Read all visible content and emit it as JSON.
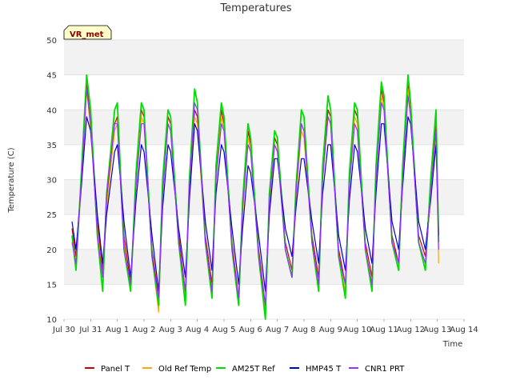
{
  "chart_data": {
    "type": "line",
    "title": "Temperatures",
    "xlabel": "Time",
    "ylabel": "Temperature (C)",
    "ylim": [
      10,
      50
    ],
    "xlim": [
      0,
      15
    ],
    "y_ticks": [
      10,
      15,
      20,
      25,
      30,
      35,
      40,
      45,
      50
    ],
    "x_ticks": [
      0,
      1,
      2,
      3,
      4,
      5,
      6,
      7,
      8,
      9,
      10,
      11,
      12,
      13,
      14,
      15
    ],
    "x_tick_labels": [
      "Jul 30",
      "Jul 31",
      "Aug 1",
      "Aug 2",
      "Aug 3",
      "Aug 4",
      "Aug 5",
      "Aug 6",
      "Aug 7",
      "Aug 8",
      "Aug 9",
      "Aug 10",
      "Aug 11",
      "Aug 12",
      "Aug 13",
      "Aug 14"
    ],
    "grid": true,
    "background_bands": true,
    "legend_position": "bottom",
    "site_badge": "VR_met",
    "series": [
      {
        "name": "Panel T",
        "color": "#cc0000",
        "width": 1.2,
        "x": [
          0.3,
          0.45,
          0.65,
          0.85,
          1.0,
          1.25,
          1.45,
          1.6,
          1.9,
          2.0,
          2.25,
          2.5,
          2.7,
          2.9,
          3.0,
          3.3,
          3.55,
          3.7,
          3.9,
          4.0,
          4.3,
          4.55,
          4.7,
          4.9,
          5.0,
          5.3,
          5.55,
          5.7,
          5.9,
          6.0,
          6.3,
          6.55,
          6.7,
          6.9,
          7.0,
          7.3,
          7.55,
          7.7,
          7.9,
          8.0,
          8.3,
          8.55,
          8.7,
          8.9,
          9.0,
          9.3,
          9.55,
          9.7,
          9.9,
          10.0,
          10.3,
          10.55,
          10.7,
          10.9,
          11.0,
          11.3,
          11.55,
          11.7,
          11.9,
          12.0,
          12.3,
          12.55,
          12.7,
          12.9,
          13.0,
          13.3,
          13.55,
          13.75,
          13.95,
          14.05
        ],
        "y": [
          23,
          19,
          30,
          44,
          38,
          24,
          17,
          27,
          38,
          39,
          22,
          15,
          30,
          40,
          39,
          20,
          13,
          29,
          39,
          38,
          22,
          14,
          29,
          40,
          39,
          22,
          15,
          31,
          40,
          38,
          21,
          13,
          26,
          37,
          35,
          20,
          12,
          27,
          36,
          35,
          21,
          17,
          28,
          38,
          37,
          22,
          16,
          31,
          40,
          39,
          20,
          15,
          30,
          40,
          39,
          21,
          16,
          31,
          43,
          41,
          22,
          18,
          31,
          44,
          40,
          22,
          19,
          29,
          38,
          21
        ]
      },
      {
        "name": "Old Ref Temp",
        "color": "#ffa500",
        "width": 1.2,
        "x": [
          0.3,
          0.45,
          0.65,
          0.85,
          1.0,
          1.25,
          1.45,
          1.6,
          1.9,
          2.0,
          2.25,
          2.5,
          2.7,
          2.9,
          3.0,
          3.3,
          3.55,
          3.7,
          3.9,
          4.0,
          4.3,
          4.55,
          4.7,
          4.9,
          5.0,
          5.3,
          5.55,
          5.7,
          5.9,
          6.0,
          6.3,
          6.55,
          6.7,
          6.9,
          7.0,
          7.3,
          7.55,
          7.7,
          7.9,
          8.0,
          8.3,
          8.55,
          8.7,
          8.9,
          9.0,
          9.3,
          9.55,
          9.7,
          9.9,
          10.0,
          10.3,
          10.55,
          10.7,
          10.9,
          11.0,
          11.3,
          11.55,
          11.7,
          11.9,
          12.0,
          12.3,
          12.55,
          12.7,
          12.9,
          13.0,
          13.3,
          13.55,
          13.75,
          13.95,
          14.05
        ],
        "y": [
          22,
          18,
          29,
          43,
          37,
          23,
          16,
          26,
          37,
          38,
          21,
          14,
          29,
          39,
          38,
          19,
          11,
          28,
          38,
          37,
          21,
          13,
          28,
          39,
          38,
          21,
          14,
          30,
          39,
          37,
          20,
          12,
          25,
          36,
          34,
          19,
          11,
          26,
          35,
          34,
          20,
          16,
          27,
          37,
          36,
          21,
          15,
          30,
          39,
          38,
          19,
          14,
          29,
          39,
          38,
          20,
          15,
          30,
          42,
          40,
          21,
          17,
          30,
          43,
          39,
          21,
          18,
          28,
          37,
          18
        ]
      },
      {
        "name": "AM25T Ref",
        "color": "#00dd00",
        "width": 1.8,
        "x": [
          0.3,
          0.45,
          0.65,
          0.85,
          1.0,
          1.25,
          1.45,
          1.6,
          1.9,
          2.0,
          2.25,
          2.5,
          2.7,
          2.9,
          3.0,
          3.3,
          3.55,
          3.7,
          3.9,
          4.0,
          4.3,
          4.55,
          4.7,
          4.9,
          5.0,
          5.3,
          5.55,
          5.7,
          5.9,
          6.0,
          6.3,
          6.55,
          6.7,
          6.9,
          7.0,
          7.3,
          7.55,
          7.7,
          7.9,
          8.0,
          8.3,
          8.55,
          8.7,
          8.9,
          9.0,
          9.3,
          9.55,
          9.7,
          9.9,
          10.0,
          10.3,
          10.55,
          10.7,
          10.9,
          11.0,
          11.3,
          11.55,
          11.7,
          11.9,
          12.0,
          12.3,
          12.55,
          12.7,
          12.9,
          13.0,
          13.3,
          13.55,
          13.75,
          13.95,
          14.05
        ],
        "y": [
          22,
          17,
          31,
          45,
          40,
          22,
          14,
          28,
          40,
          41,
          20,
          14,
          31,
          41,
          40,
          19,
          12,
          30,
          40,
          39,
          21,
          12,
          30,
          43,
          41,
          21,
          13,
          32,
          41,
          39,
          20,
          12,
          27,
          38,
          36,
          19,
          10,
          28,
          37,
          36,
          20,
          16,
          29,
          40,
          39,
          21,
          14,
          32,
          42,
          40,
          19,
          13,
          31,
          41,
          40,
          20,
          14,
          32,
          44,
          42,
          21,
          17,
          32,
          45,
          41,
          21,
          17,
          30,
          40,
          21
        ]
      },
      {
        "name": "HMP45 T",
        "color": "#0000cc",
        "width": 1.2,
        "x": [
          0.3,
          0.45,
          0.65,
          0.85,
          1.0,
          1.25,
          1.45,
          1.6,
          1.9,
          2.0,
          2.25,
          2.5,
          2.7,
          2.9,
          3.0,
          3.3,
          3.55,
          3.7,
          3.9,
          4.0,
          4.3,
          4.55,
          4.7,
          4.9,
          5.0,
          5.3,
          5.55,
          5.7,
          5.9,
          6.0,
          6.3,
          6.55,
          6.7,
          6.9,
          7.0,
          7.3,
          7.55,
          7.7,
          7.9,
          8.0,
          8.3,
          8.55,
          8.7,
          8.9,
          9.0,
          9.3,
          9.55,
          9.7,
          9.9,
          10.0,
          10.3,
          10.55,
          10.7,
          10.9,
          11.0,
          11.3,
          11.55,
          11.7,
          11.9,
          12.0,
          12.3,
          12.55,
          12.7,
          12.9,
          13.0,
          13.3,
          13.55,
          13.75,
          13.95,
          14.05
        ],
        "y": [
          24,
          20,
          29,
          39,
          37,
          25,
          18,
          25,
          34,
          35,
          24,
          16,
          27,
          35,
          34,
          22,
          14,
          26,
          35,
          34,
          23,
          16,
          27,
          38,
          37,
          24,
          17,
          28,
          35,
          34,
          23,
          15,
          23,
          32,
          31,
          22,
          14,
          25,
          33,
          33,
          23,
          19,
          26,
          33,
          33,
          24,
          18,
          28,
          35,
          35,
          22,
          17,
          27,
          35,
          34,
          23,
          18,
          28,
          38,
          38,
          24,
          20,
          29,
          39,
          38,
          24,
          20,
          27,
          35,
          22
        ]
      },
      {
        "name": "CNR1 PRT",
        "color": "#9933ff",
        "width": 1.2,
        "x": [
          0.3,
          0.45,
          0.65,
          0.85,
          1.0,
          1.25,
          1.45,
          1.6,
          1.9,
          2.0,
          2.25,
          2.5,
          2.7,
          2.9,
          3.0,
          3.3,
          3.55,
          3.7,
          3.9,
          4.0,
          4.3,
          4.55,
          4.7,
          4.9,
          5.0,
          5.3,
          5.55,
          5.7,
          5.9,
          6.0,
          6.3,
          6.55,
          6.7,
          6.9,
          7.0,
          7.3,
          7.55,
          7.7,
          7.9,
          8.0,
          8.3,
          8.55,
          8.7,
          8.9,
          9.0,
          9.3,
          9.55,
          9.7,
          9.9,
          10.0,
          10.3,
          10.55,
          10.7,
          10.9,
          11.0,
          11.3,
          11.55,
          11.7,
          11.9,
          12.0,
          12.3,
          12.55,
          12.7,
          12.9,
          13.0,
          13.3,
          13.55,
          13.75,
          13.95,
          14.05
        ],
        "y": [
          21,
          18,
          30,
          43,
          38,
          22,
          16,
          28,
          38,
          38,
          20,
          15,
          29,
          38,
          38,
          19,
          13,
          28,
          38,
          37,
          21,
          14,
          29,
          41,
          40,
          21,
          14,
          30,
          38,
          37,
          20,
          13,
          26,
          35,
          34,
          19,
          12,
          27,
          35,
          34,
          20,
          16,
          28,
          38,
          37,
          21,
          15,
          30,
          39,
          38,
          19,
          15,
          29,
          38,
          37,
          20,
          15,
          30,
          41,
          40,
          21,
          18,
          30,
          42,
          39,
          21,
          18,
          28,
          37,
          20
        ]
      }
    ]
  }
}
